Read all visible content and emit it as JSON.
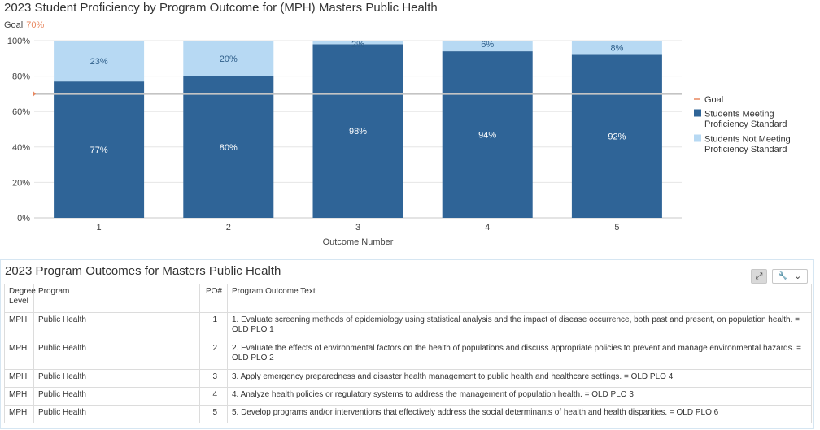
{
  "chart_title": "2023 Student Proficiency by Program Outcome for (MPH) Masters Public Health",
  "goal_caption": {
    "label": "Goal",
    "value": "70%"
  },
  "chart_data": {
    "type": "bar",
    "stacked": true,
    "categories": [
      "1",
      "2",
      "3",
      "4",
      "5"
    ],
    "series": [
      {
        "name": "Students Meeting Proficiency Standard",
        "values": [
          77,
          80,
          98,
          94,
          92
        ],
        "labels": [
          "77%",
          "80%",
          "98%",
          "94%",
          "92%"
        ],
        "color": "#2f6497",
        "label_color": "#ffffff"
      },
      {
        "name": "Students Not Meeting Proficiency Standard",
        "values": [
          23,
          20,
          2,
          6,
          8
        ],
        "labels": [
          "23%",
          "20%",
          "2%",
          "6%",
          "8%"
        ],
        "color": "#b7d9f3",
        "label_color": "#2f5f8a"
      }
    ],
    "goal": {
      "name": "Goal",
      "value": 70,
      "color": "#e8875f"
    },
    "xlabel": "Outcome Number",
    "ylabel": "",
    "ylim": [
      0,
      100
    ],
    "yticks": [
      "0%",
      "20%",
      "40%",
      "60%",
      "80%",
      "100%"
    ],
    "grid": true,
    "legend_position": "right",
    "legend": [
      {
        "name": "Goal",
        "kind": "line",
        "color": "#e8875f",
        "lines": [
          "Goal"
        ]
      },
      {
        "name": "Students Meeting Proficiency Standard",
        "kind": "box",
        "color": "#2f6497",
        "lines": [
          "Students Meeting",
          "Proficiency Standard"
        ]
      },
      {
        "name": "Students Not Meeting Proficiency Standard",
        "kind": "box",
        "color": "#b7d9f3",
        "lines": [
          "Students Not Meeting",
          "Proficiency Standard"
        ]
      }
    ]
  },
  "table_panel": {
    "title": "2023 Program Outcomes for Masters Public Health",
    "expand_icon": "expand-icon",
    "wrench_icon": "wrench-icon",
    "chevron_icon": "chevron-down-icon",
    "expand_glyph": "⤢",
    "wrench_glyph": "🔧",
    "chevron_glyph": "⌄",
    "headers": {
      "degree": "Degree Level",
      "program": "Program",
      "po": "PO#",
      "text": "Program Outcome Text"
    },
    "rows": [
      {
        "degree": "MPH",
        "program": "Public Health",
        "po": "1",
        "text": "1. Evaluate screening methods of epidemiology using statistical analysis and the impact of disease occurrence, both past and present, on population health.  = OLD PLO 1"
      },
      {
        "degree": "MPH",
        "program": "Public Health",
        "po": "2",
        "text": "2. Evaluate the effects of environmental factors on the health of populations and discuss appropriate policies to prevent and manage environmental hazards.  = OLD PLO 2"
      },
      {
        "degree": "MPH",
        "program": "Public Health",
        "po": "3",
        "text": "3. Apply emergency preparedness and disaster health management to public health and healthcare settings.  = OLD PLO 4"
      },
      {
        "degree": "MPH",
        "program": "Public Health",
        "po": "4",
        "text": "4. Analyze health policies or regulatory systems to address the management of population health.   = OLD PLO 3"
      },
      {
        "degree": "MPH",
        "program": "Public Health",
        "po": "5",
        "text": "5. Develop programs and/or interventions that effectively address the social determinants of health and health disparities.  = OLD PLO 6"
      }
    ]
  }
}
